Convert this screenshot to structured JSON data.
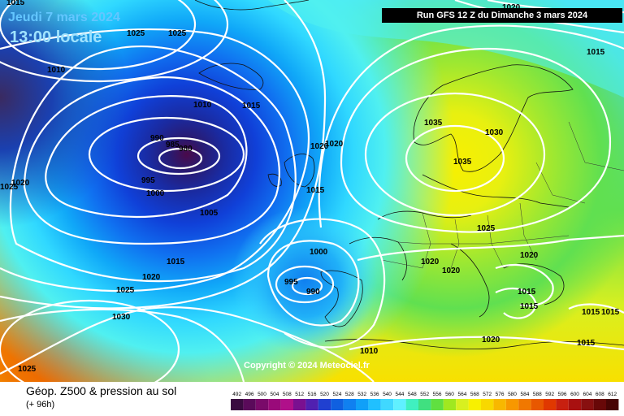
{
  "header": {
    "date": "Jeudi 7 mars 2024",
    "local_time": "13:00 locale",
    "run": "Run GFS 12 Z du Dimanche 3 mars 2024"
  },
  "footer": {
    "product": "Géop. Z500 & pression au sol",
    "lead_time": "(+ 96h)",
    "copyright": "Copyright © 2024 Meteociel.fr"
  },
  "legend": {
    "ticks": [
      "492",
      "496",
      "500",
      "504",
      "508",
      "512",
      "516",
      "520",
      "524",
      "528",
      "532",
      "536",
      "540",
      "544",
      "548",
      "552",
      "556",
      "560",
      "564",
      "568",
      "572",
      "576",
      "580",
      "584",
      "588",
      "592",
      "596",
      "600",
      "604",
      "608",
      "612"
    ],
    "colors": [
      "#3a0a40",
      "#5a0a5a",
      "#7a0a6a",
      "#9a0a7a",
      "#b0108a",
      "#7a1090",
      "#5020b0",
      "#2040d0",
      "#1060e0",
      "#1080f0",
      "#10a0f8",
      "#20c0ff",
      "#40d8ff",
      "#60f0ff",
      "#40f0c0",
      "#40e080",
      "#60e040",
      "#a0e820",
      "#d8f020",
      "#f8f000",
      "#f8d800",
      "#f8b800",
      "#f89800",
      "#f07800",
      "#e85800",
      "#e03800",
      "#c82010",
      "#a81010",
      "#881010",
      "#680808",
      "#480404"
    ]
  },
  "isobar_labels": [
    {
      "text": "1025"
    },
    {
      "text": "1025"
    },
    {
      "text": "1010"
    },
    {
      "text": "1010"
    },
    {
      "text": "1015"
    },
    {
      "text": "990"
    },
    {
      "text": "985"
    },
    {
      "text": "980"
    },
    {
      "text": "995"
    },
    {
      "text": "1000"
    },
    {
      "text": "1005"
    },
    {
      "text": "1020"
    },
    {
      "text": "1025"
    },
    {
      "text": "1020"
    },
    {
      "text": "1015"
    },
    {
      "text": "1015"
    },
    {
      "text": "1020"
    },
    {
      "text": "1025"
    },
    {
      "text": "1030"
    },
    {
      "text": "1025"
    },
    {
      "text": "1020"
    },
    {
      "text": "1015"
    },
    {
      "text": "1035"
    },
    {
      "text": "1030"
    },
    {
      "text": "1035"
    },
    {
      "text": "1025"
    },
    {
      "text": "1020"
    },
    {
      "text": "1020"
    },
    {
      "text": "1000"
    },
    {
      "text": "995"
    },
    {
      "text": "990"
    },
    {
      "text": "1020"
    },
    {
      "text": "1015"
    },
    {
      "text": "1015"
    },
    {
      "text": "1015"
    },
    {
      "text": "1015"
    },
    {
      "text": "1015"
    },
    {
      "text": "1020"
    },
    {
      "text": "1010"
    },
    {
      "text": "1015"
    },
    {
      "text": "1020"
    }
  ]
}
